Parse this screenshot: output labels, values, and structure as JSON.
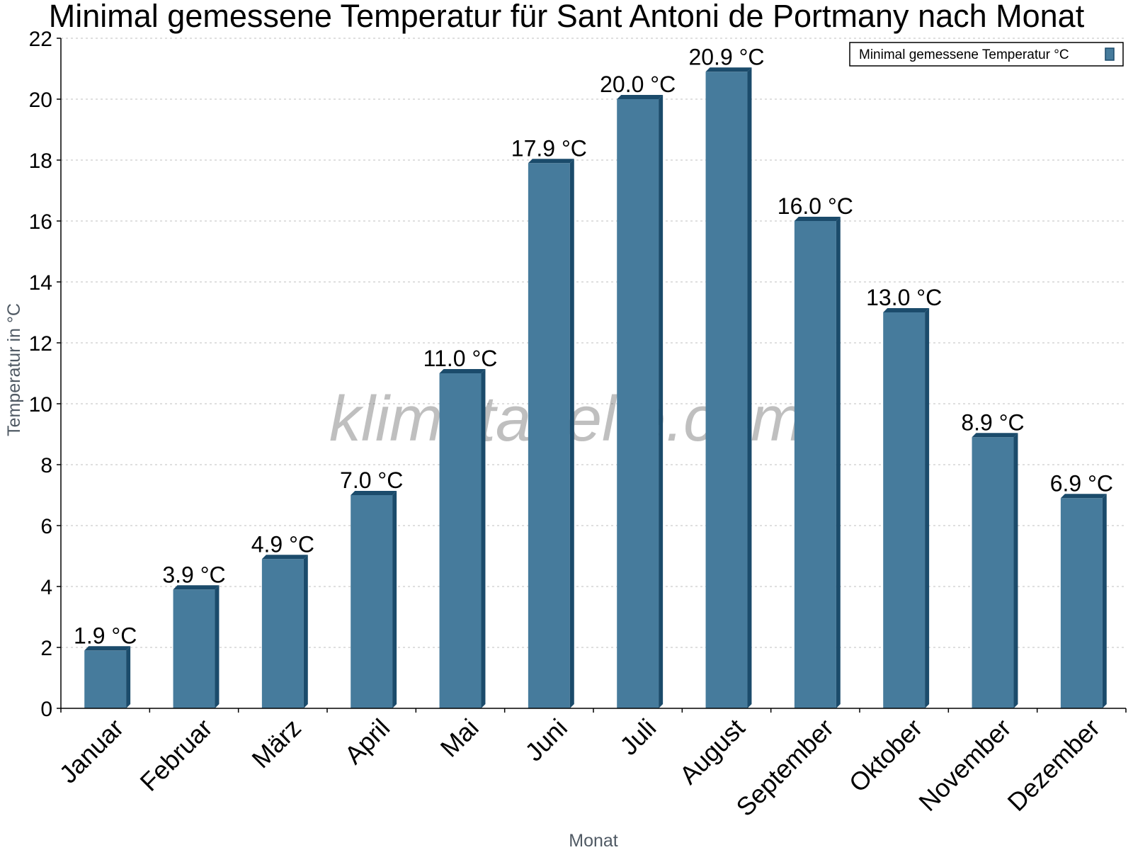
{
  "chart_data": {
    "type": "bar",
    "title": "Minimal gemessene Temperatur für Sant Antoni de Portmany nach Monat",
    "xlabel": "Monat",
    "ylabel": "Temperatur in °C",
    "categories": [
      "Januar",
      "Februar",
      "März",
      "April",
      "Mai",
      "Juni",
      "Juli",
      "August",
      "September",
      "Oktober",
      "November",
      "Dezember"
    ],
    "series": [
      {
        "name": "Minimal gemessene Temperatur °C",
        "values": [
          1.9,
          3.9,
          4.9,
          7.0,
          11.0,
          17.9,
          20.0,
          20.9,
          16.0,
          13.0,
          8.9,
          6.9
        ],
        "labels": [
          "1.9 °C",
          "3.9 °C",
          "4.9 °C",
          "7.0 °C",
          "11.0 °C",
          "17.9 °C",
          "20.0 °C",
          "20.9 °C",
          "16.0 °C",
          "13.0 °C",
          "8.9 °C",
          "6.9 °C"
        ]
      }
    ],
    "ylim": [
      0,
      22
    ],
    "yticks": [
      0,
      2,
      4,
      6,
      8,
      10,
      12,
      14,
      16,
      18,
      20,
      22
    ],
    "grid": true,
    "legend_position": "top-right",
    "colors": {
      "bar": "#467b9c",
      "bar_side": "#1b4b6b",
      "grid": "#cccccc",
      "axis": "#000000"
    }
  },
  "watermark": "klimatabelle.com"
}
